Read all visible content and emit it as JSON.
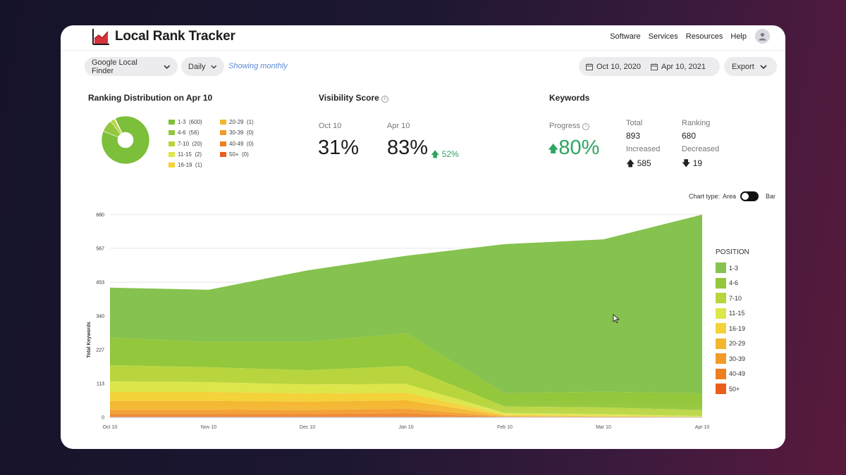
{
  "header": {
    "brand": "Local Rank Tracker",
    "nav": [
      "Software",
      "Services",
      "Resources",
      "Help"
    ]
  },
  "controls": {
    "finder": "Google Local Finder",
    "frequency": "Daily",
    "showing": "Showing monthly",
    "date_from": "Oct 10, 2020",
    "date_to": "Apr 10, 2021",
    "export": "Export"
  },
  "distribution": {
    "title": "Ranking Distribution on Apr 10",
    "items": [
      {
        "label": "1-3",
        "count": "(600)",
        "value": 600,
        "color": "#7cbf3a"
      },
      {
        "label": "4-6",
        "count": "(56)",
        "value": 56,
        "color": "#93c73c"
      },
      {
        "label": "7-10",
        "count": "(20)",
        "value": 20,
        "color": "#b8d53e"
      },
      {
        "label": "11-15",
        "count": "(2)",
        "value": 2,
        "color": "#dde64a"
      },
      {
        "label": "16-19",
        "count": "(1)",
        "value": 1,
        "color": "#f3d23a"
      },
      {
        "label": "20-29",
        "count": "(1)",
        "value": 1,
        "color": "#f4b62e"
      },
      {
        "label": "30-39",
        "count": "(0)",
        "value": 0,
        "color": "#f29a28"
      },
      {
        "label": "40-49",
        "count": "(0)",
        "value": 0,
        "color": "#ee7e22"
      },
      {
        "label": "50+",
        "count": "(0)",
        "value": 0,
        "color": "#ea5e1c"
      }
    ]
  },
  "visibility": {
    "title": "Visibility Score",
    "from_label": "Oct 10",
    "from_value": "31%",
    "to_label": "Apr 10",
    "to_value": "83%",
    "change": "52%"
  },
  "keywords": {
    "title": "Keywords",
    "progress_label": "Progress",
    "progress_value": "80%",
    "total_label": "Total",
    "total_value": "893",
    "ranking_label": "Ranking",
    "ranking_value": "680",
    "increased_label": "Increased",
    "increased_value": "585",
    "decreased_label": "Decreased",
    "decreased_value": "19"
  },
  "chart_type": {
    "label": "Chart type:",
    "option_a": "Area",
    "option_b": "Bar",
    "selected": "Area"
  },
  "chart_data": {
    "type": "area",
    "stacked": true,
    "ylabel": "Total Keywords",
    "xlabel": "",
    "categories": [
      "Oct 10",
      "Nov 10",
      "Dec 10",
      "Jan 10",
      "Feb 10",
      "Mar 10",
      "Apr 10"
    ],
    "yticks": [
      0,
      113,
      227,
      340,
      453,
      567,
      680
    ],
    "ylim": [
      0,
      680
    ],
    "legend_title": "POSITION",
    "series": [
      {
        "name": "50+",
        "color": "#ea5e1c",
        "values": [
          3,
          3,
          3,
          3,
          0,
          0,
          0
        ]
      },
      {
        "name": "40-49",
        "color": "#ee7e22",
        "values": [
          8,
          8,
          8,
          10,
          1,
          0,
          0
        ]
      },
      {
        "name": "30-39",
        "color": "#f29a28",
        "values": [
          14,
          14,
          13,
          16,
          1,
          1,
          0
        ]
      },
      {
        "name": "20-29",
        "color": "#f4b62e",
        "values": [
          30,
          30,
          28,
          28,
          3,
          2,
          1
        ]
      },
      {
        "name": "16-19",
        "color": "#f3d23a",
        "values": [
          30,
          30,
          28,
          25,
          4,
          3,
          1
        ]
      },
      {
        "name": "11-15",
        "color": "#dde64a",
        "values": [
          35,
          33,
          30,
          30,
          5,
          4,
          2
        ]
      },
      {
        "name": "7-10",
        "color": "#b8d53e",
        "values": [
          55,
          50,
          48,
          60,
          22,
          23,
          20
        ]
      },
      {
        "name": "4-6",
        "color": "#93c73c",
        "values": [
          92,
          85,
          95,
          110,
          45,
          53,
          56
        ]
      },
      {
        "name": "1-3",
        "color": "#86c24f",
        "values": [
          168,
          175,
          240,
          260,
          500,
          511,
          600
        ]
      }
    ]
  }
}
